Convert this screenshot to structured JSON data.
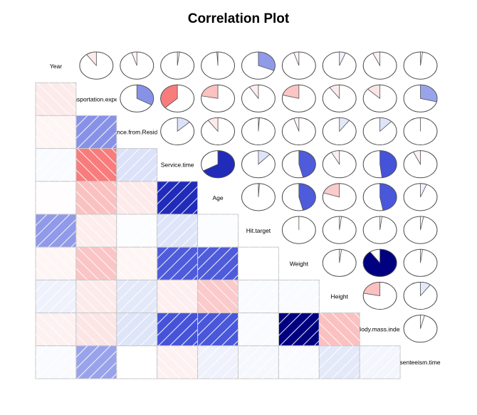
{
  "chart_data": {
    "type": "heatmap",
    "title": "Correlation Plot",
    "lower_panel": "shade",
    "upper_panel": "pie",
    "variables": [
      "Year",
      "Transportation.expense",
      "Distance.from.Residence",
      "Service.time",
      "Age",
      "Hit.target",
      "Weight",
      "Height",
      "Body.mass.index",
      "Absenteeism.time.in."
    ],
    "matrix": [
      [
        1.0,
        -0.1,
        -0.05,
        0.02,
        -0.01,
        0.31,
        -0.05,
        0.06,
        -0.07,
        0.02
      ],
      [
        -0.1,
        1.0,
        0.33,
        -0.37,
        -0.22,
        -0.09,
        -0.21,
        -0.1,
        -0.13,
        0.29
      ],
      [
        -0.05,
        0.33,
        1.0,
        0.13,
        -0.1,
        0.01,
        -0.05,
        0.1,
        0.12,
        0.0
      ],
      [
        0.02,
        -0.37,
        0.13,
        1.0,
        0.67,
        0.12,
        0.46,
        -0.08,
        0.48,
        -0.07
      ],
      [
        -0.01,
        -0.22,
        -0.1,
        0.67,
        1.0,
        0.01,
        0.46,
        -0.2,
        0.47,
        0.06
      ],
      [
        0.31,
        -0.09,
        0.01,
        0.12,
        0.01,
        1.0,
        0.0,
        0.02,
        0.02,
        0.03
      ],
      [
        -0.05,
        -0.21,
        -0.05,
        0.46,
        0.46,
        0.0,
        1.0,
        0.02,
        0.9,
        0.02
      ],
      [
        0.06,
        -0.1,
        0.1,
        -0.08,
        -0.2,
        0.02,
        0.02,
        1.0,
        -0.22,
        0.1
      ],
      [
        -0.07,
        -0.13,
        0.12,
        0.48,
        0.47,
        0.02,
        0.9,
        -0.22,
        1.0,
        0.04
      ],
      [
        0.02,
        0.29,
        0.0,
        -0.07,
        0.06,
        0.03,
        0.02,
        0.1,
        0.04,
        1.0
      ]
    ],
    "display_labels": [
      "Year",
      "Transportation.expense",
      "Distance.from.Residence",
      "Service.time",
      "Age",
      "Hit.target",
      "Weight",
      "Height",
      "Body.mass.index",
      "Absenteeism.time.in."
    ],
    "colors": {
      "negative": "#FF0000",
      "positive": "#000080",
      "positive_mid": "#2030D0",
      "neutral": "#FFFFFF",
      "grid": "#C8C8C8",
      "outline": "#505050"
    }
  }
}
